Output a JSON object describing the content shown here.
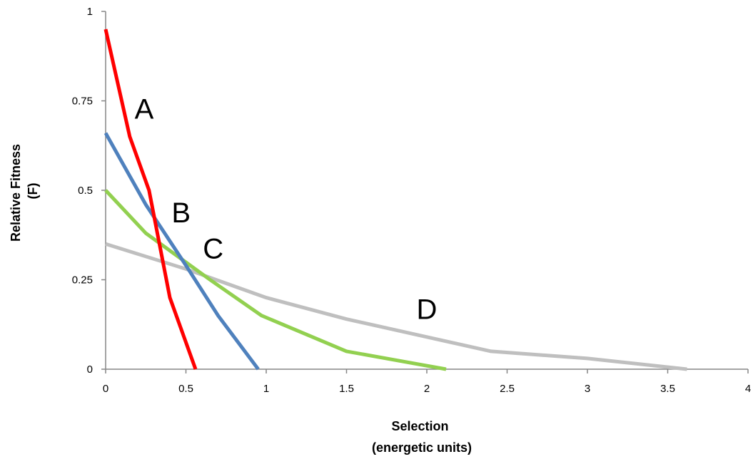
{
  "chart_data": {
    "type": "line",
    "title": "",
    "xlabel": [
      "Selection",
      "(energetic units)"
    ],
    "ylabel": [
      "Relative Fitness",
      "(F)"
    ],
    "xlim": [
      0,
      4
    ],
    "ylim": [
      0,
      1
    ],
    "x_ticks": [
      "0",
      "0.5",
      "1",
      "1.5",
      "2",
      "2.5",
      "3",
      "3.5",
      "4"
    ],
    "y_ticks": [
      "0",
      "0.25",
      "0.5",
      "0.75",
      "1"
    ],
    "grid": false,
    "series": [
      {
        "name": "A",
        "color": "#ff0000",
        "points": [
          [
            0,
            0.95
          ],
          [
            0.15,
            0.65
          ],
          [
            0.27,
            0.5
          ],
          [
            0.4,
            0.2
          ],
          [
            0.56,
            0
          ]
        ]
      },
      {
        "name": "B",
        "color": "#4f81bd",
        "points": [
          [
            0,
            0.66
          ],
          [
            0.25,
            0.46
          ],
          [
            0.5,
            0.29
          ],
          [
            0.7,
            0.15
          ],
          [
            0.95,
            0
          ]
        ]
      },
      {
        "name": "C",
        "color": "#92d050",
        "points": [
          [
            0,
            0.5
          ],
          [
            0.25,
            0.38
          ],
          [
            0.65,
            0.25
          ],
          [
            0.97,
            0.15
          ],
          [
            1.5,
            0.05
          ],
          [
            2.12,
            0
          ]
        ]
      },
      {
        "name": "D",
        "color": "#bfbfbf",
        "points": [
          [
            0,
            0.35
          ],
          [
            0.5,
            0.28
          ],
          [
            1,
            0.2
          ],
          [
            1.5,
            0.14
          ],
          [
            2,
            0.09
          ],
          [
            2.4,
            0.05
          ],
          [
            3,
            0.03
          ],
          [
            3.62,
            0
          ]
        ]
      }
    ],
    "labels": [
      {
        "text": "A",
        "x": 0.24,
        "y": 0.7
      },
      {
        "text": "B",
        "x": 0.47,
        "y": 0.41
      },
      {
        "text": "C",
        "x": 0.67,
        "y": 0.31
      },
      {
        "text": "D",
        "x": 2.0,
        "y": 0.14
      }
    ]
  }
}
